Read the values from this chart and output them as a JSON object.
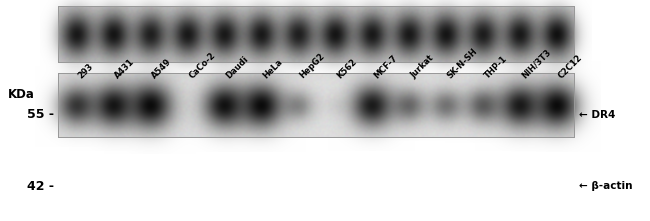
{
  "fig_width": 6.5,
  "fig_height": 2.21,
  "dpi": 100,
  "bg_color": "#ffffff",
  "cell_lines": [
    "293",
    "A431",
    "A549",
    "CaCo-2",
    "Daudi",
    "HeLa",
    "HepG2",
    "K562",
    "MCF-7",
    "Jurkat",
    "SK-N-SH",
    "THP-1",
    "NIH/3T3",
    "C2C12"
  ],
  "kda_label": "KDa",
  "band1_label": "55 -",
  "band2_label": "42 -",
  "dr4_label": "← DR4",
  "actin_label": "← β-actin",
  "wb1_bg": "#e0e0e0",
  "wb2_bg": "#d0d0d0",
  "wb1_bands": [
    0.75,
    0.9,
    1.0,
    0.0,
    0.92,
    0.95,
    0.38,
    0.06,
    0.88,
    0.52,
    0.48,
    0.58,
    0.88,
    0.95
  ],
  "wb2_bands": [
    0.88,
    0.9,
    0.85,
    0.88,
    0.88,
    0.88,
    0.85,
    0.9,
    0.88,
    0.88,
    0.9,
    0.86,
    0.88,
    0.92
  ]
}
